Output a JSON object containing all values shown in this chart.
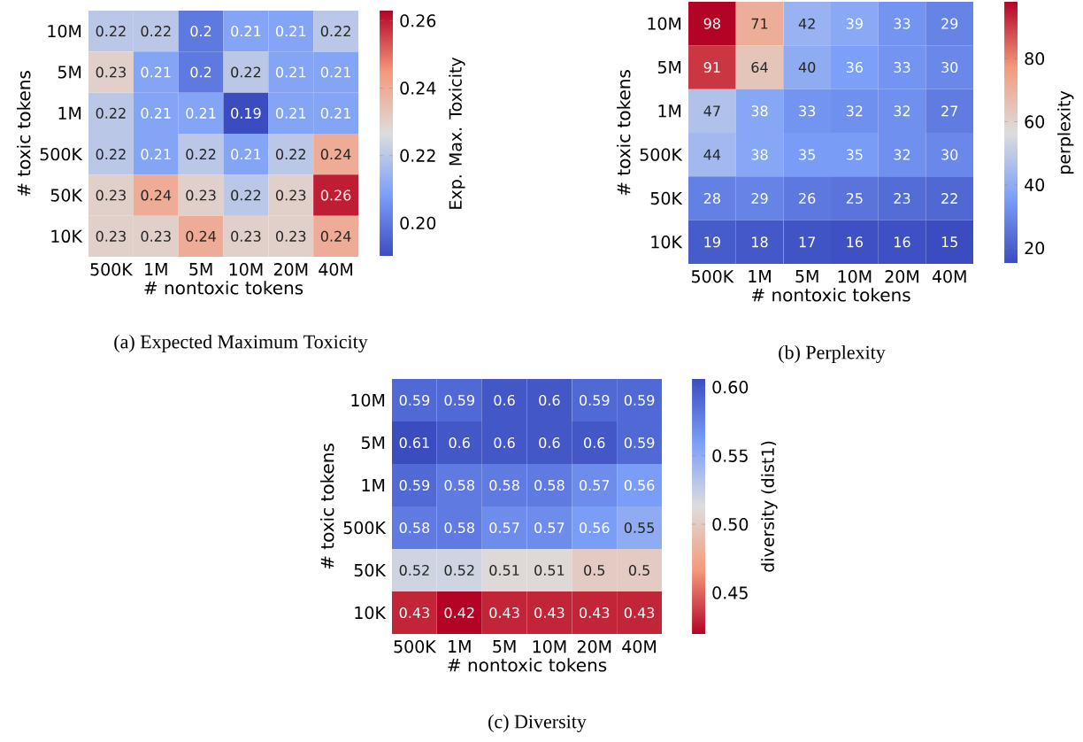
{
  "chart_data": [
    {
      "type": "heatmap",
      "title": "(a) Expected Maximum Toxicity",
      "xlabel": "# nontoxic tokens",
      "ylabel": "# toxic tokens",
      "clabel": "Exp. Max. Toxicity",
      "categories": [
        "500K",
        "1M",
        "5M",
        "10M",
        "20M",
        "40M"
      ],
      "y_categories": [
        "10M",
        "5M",
        "1M",
        "500K",
        "50K",
        "10K"
      ],
      "cells": [
        [
          0.22,
          0.22,
          0.2,
          0.21,
          0.21,
          0.22
        ],
        [
          0.23,
          0.21,
          0.2,
          0.22,
          0.21,
          0.21
        ],
        [
          0.22,
          0.21,
          0.21,
          0.19,
          0.21,
          0.21
        ],
        [
          0.22,
          0.21,
          0.22,
          0.21,
          0.22,
          0.24
        ],
        [
          0.23,
          0.24,
          0.23,
          0.22,
          0.23,
          0.26
        ],
        [
          0.23,
          0.23,
          0.24,
          0.23,
          0.23,
          0.24
        ]
      ],
      "clim": [
        0.19,
        0.263
      ],
      "cticks": [
        {
          "value": 0.2,
          "label": "0.20"
        },
        0.22,
        0.24,
        0.26
      ],
      "colors": [
        "#3b4cc0",
        "#7b9ff9",
        "#dddddd",
        "#f49a7b",
        "#b40426"
      ],
      "data_labels": true
    },
    {
      "type": "heatmap",
      "title": "(b) Perplexity",
      "xlabel": "# nontoxic tokens",
      "ylabel": "# toxic tokens",
      "clabel": "perplexity",
      "categories": [
        "500K",
        "1M",
        "5M",
        "10M",
        "20M",
        "40M"
      ],
      "y_categories": [
        "10M",
        "5M",
        "1M",
        "500K",
        "50K",
        "10K"
      ],
      "cells": [
        [
          98,
          71,
          42,
          39,
          33,
          29
        ],
        [
          91,
          64,
          40,
          36,
          33,
          30
        ],
        [
          47,
          38,
          33,
          32,
          32,
          27
        ],
        [
          44,
          38,
          35,
          35,
          32,
          30
        ],
        [
          28,
          29,
          26,
          25,
          23,
          22
        ],
        [
          19,
          18,
          17,
          16,
          16,
          15
        ]
      ],
      "clim": [
        15,
        98
      ],
      "cticks": [
        20,
        40,
        60,
        80
      ],
      "colors": [
        "#3b4cc0",
        "#7b9ff9",
        "#dddddd",
        "#f49a7b",
        "#b40426"
      ],
      "data_labels": true
    },
    {
      "type": "heatmap",
      "title": "(c) Diversity",
      "xlabel": "# nontoxic tokens",
      "ylabel": "# toxic tokens",
      "clabel": "diversity (dist1)",
      "categories": [
        "500K",
        "1M",
        "5M",
        "10M",
        "20M",
        "40M"
      ],
      "y_categories": [
        "10M",
        "5M",
        "1M",
        "500K",
        "50K",
        "10K"
      ],
      "cells": [
        [
          0.59,
          0.59,
          0.6,
          0.6,
          0.59,
          0.59
        ],
        [
          0.61,
          0.6,
          0.6,
          0.6,
          0.6,
          0.59
        ],
        [
          0.59,
          0.58,
          0.58,
          0.58,
          0.57,
          0.56
        ],
        [
          0.58,
          0.58,
          0.57,
          0.57,
          0.56,
          0.55
        ],
        [
          0.52,
          0.52,
          0.51,
          0.51,
          0.5,
          0.5
        ],
        [
          0.43,
          0.42,
          0.43,
          0.43,
          0.43,
          0.43
        ]
      ],
      "clim": [
        0.42,
        0.606
      ],
      "cticks": [
        0.45,
        {
          "value": 0.5,
          "label": "0.50"
        },
        0.55,
        {
          "value": 0.6,
          "label": "0.60"
        }
      ],
      "colors": [
        "#b40426",
        "#f49a7b",
        "#dddddd",
        "#7b9ff9",
        "#3b4cc0"
      ],
      "data_labels": true
    }
  ]
}
